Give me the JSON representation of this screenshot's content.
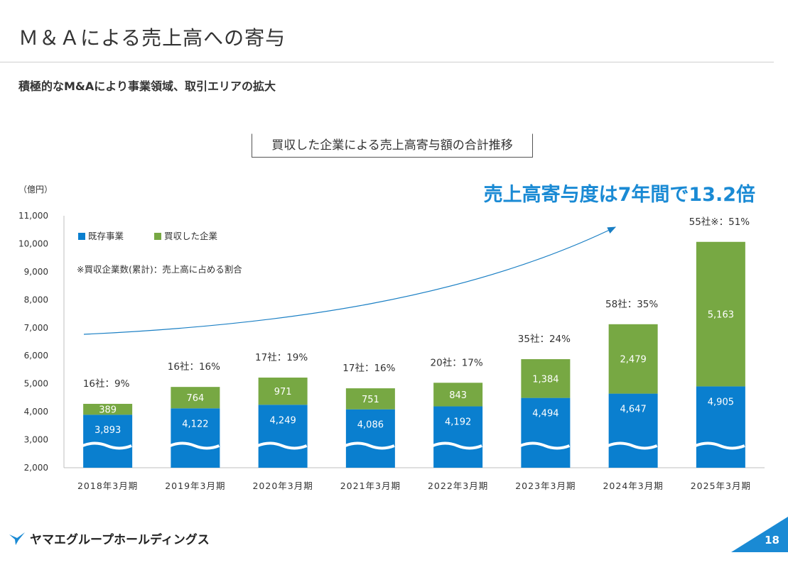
{
  "header": {
    "title": "Ｍ＆Ａによる売上高への寄与",
    "subtitle": "積極的なM&Aにより事業領域、取引エリアの拡大"
  },
  "chart_heading": "買収した企業による売上高寄与額の合計推移",
  "unit": "（億円）",
  "headline": "売上高寄与度は7年間で13.2倍",
  "legend": {
    "existing": "既存事業",
    "acquired": "買収した企業",
    "note": "※買収企業数(累計)：売上高に占める割合"
  },
  "footer": {
    "company": "ヤマエグループホールディングス",
    "page_number": "18"
  },
  "colors": {
    "existing": "#0a7fcf",
    "acquired": "#77a843",
    "headline": "#1a8ad4",
    "arrow": "#1a7fc4"
  },
  "chart_data": {
    "type": "bar",
    "stacked": true,
    "categories": [
      "2018年3月期",
      "2019年3月期",
      "2020年3月期",
      "2021年3月期",
      "2022年3月期",
      "2023年3月期",
      "2024年3月期",
      "2025年3月期"
    ],
    "series": [
      {
        "name": "既存事業",
        "values": [
          3893,
          4122,
          4249,
          4086,
          4192,
          4494,
          4647,
          4905
        ]
      },
      {
        "name": "買収した企業",
        "values": [
          389,
          764,
          971,
          751,
          843,
          1384,
          2479,
          5163
        ]
      }
    ],
    "value_labels_existing": [
      "3,893",
      "4,122",
      "4,249",
      "4,086",
      "4,192",
      "4,494",
      "4,647",
      "4,905"
    ],
    "value_labels_acquired": [
      "389",
      "764",
      "971",
      "751",
      "843",
      "1,384",
      "2,479",
      "5,163"
    ],
    "annotations": [
      "16社：9%",
      "16社：16%",
      "17社：19%",
      "17社：16%",
      "20社：17%",
      "35社：24%",
      "58社：35%",
      "55社※：51%"
    ],
    "ylim": [
      2000,
      11000
    ],
    "yticks": [
      2000,
      3000,
      4000,
      5000,
      6000,
      7000,
      8000,
      9000,
      10000,
      11000
    ],
    "ytick_labels": [
      "2,000",
      "3,000",
      "4,000",
      "5,000",
      "6,000",
      "7,000",
      "8,000",
      "9,000",
      "10,000",
      "11,000"
    ],
    "axis_break": true,
    "grid": false,
    "legend_position": "top-left"
  }
}
